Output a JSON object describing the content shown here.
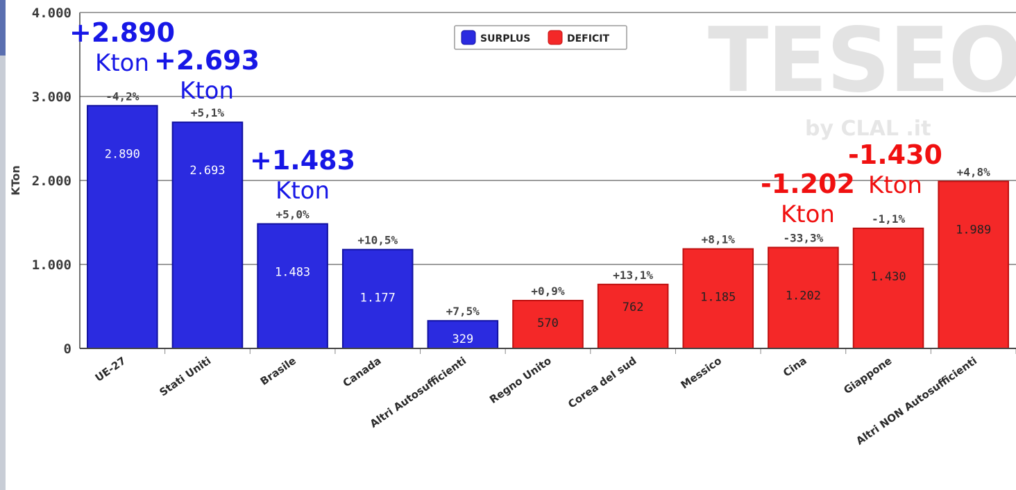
{
  "chart_data": {
    "type": "bar",
    "ylabel": "KTon",
    "ylim": [
      0,
      4000
    ],
    "y_ticks": [
      "0",
      "1.000",
      "2.000",
      "3.000",
      "4.000"
    ],
    "y_tick_values": [
      0,
      1000,
      2000,
      3000,
      4000
    ],
    "grid": true,
    "legend_position": "top-center",
    "legend": [
      {
        "label": "SURPLUS",
        "color": "#2b2be0"
      },
      {
        "label": "DEFICIT",
        "color": "#f42828"
      }
    ],
    "categories": [
      "UE-27",
      "Stati Uniti",
      "Brasile",
      "Canada",
      "Altri Autosufficienti",
      "Regno Unito",
      "Corea del sud",
      "Messico",
      "Cina",
      "Giappone",
      "Altri NON Autosufficienti"
    ],
    "values": [
      2890,
      2693,
      1483,
      1177,
      329,
      570,
      762,
      1185,
      1202,
      1430,
      1989
    ],
    "value_labels": [
      "2.890",
      "2.693",
      "1.483",
      "1.177",
      "329",
      "570",
      "762",
      "1.185",
      "1.202",
      "1.430",
      "1.989"
    ],
    "changes": [
      "-4,2%",
      "+5,1%",
      "+5,0%",
      "+10,5%",
      "+7,5%",
      "+0,9%",
      "+13,1%",
      "+8,1%",
      "-33,3%",
      "-1,1%",
      "+4,8%"
    ],
    "groups": [
      "SURPLUS",
      "SURPLUS",
      "SURPLUS",
      "SURPLUS",
      "SURPLUS",
      "DEFICIT",
      "DEFICIT",
      "DEFICIT",
      "DEFICIT",
      "DEFICIT",
      "DEFICIT"
    ],
    "colors": {
      "surplus": "#2b2be0",
      "deficit": "#f42828"
    }
  },
  "callouts": [
    {
      "value": "+2.890",
      "unit": "Kton",
      "type": "surplus"
    },
    {
      "value": "+2.693",
      "unit": "Kton",
      "type": "surplus"
    },
    {
      "value": "+1.483",
      "unit": "Kton",
      "type": "surplus"
    },
    {
      "value": "-1.202",
      "unit": "Kton",
      "type": "deficit"
    },
    {
      "value": "-1.430",
      "unit": "Kton",
      "type": "deficit"
    }
  ],
  "watermark": {
    "brand": "TESEO",
    "by": "by CLAL .it"
  }
}
